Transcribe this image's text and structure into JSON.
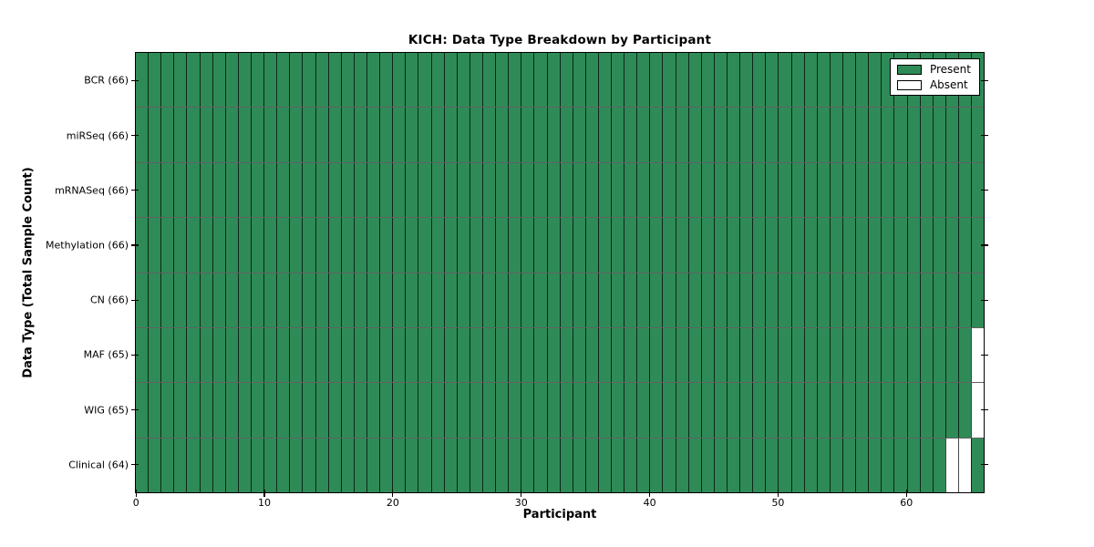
{
  "page": {
    "background": "#ffffff"
  },
  "chart_data": {
    "type": "heatmap",
    "title": "KICH: Data Type Breakdown by Participant",
    "xlabel": "Participant",
    "ylabel": "Data Type (Total Sample Count)",
    "n_participants": 66,
    "x_ticks": [
      0,
      10,
      20,
      30,
      40,
      50,
      60
    ],
    "rows": [
      {
        "label": "BCR (66)",
        "data_type": "BCR",
        "total": 66,
        "absent_participants": []
      },
      {
        "label": "miRSeq (66)",
        "data_type": "miRSeq",
        "total": 66,
        "absent_participants": []
      },
      {
        "label": "mRNASeq (66)",
        "data_type": "mRNASeq",
        "total": 66,
        "absent_participants": []
      },
      {
        "label": "Methylation (66)",
        "data_type": "Methylation",
        "total": 66,
        "absent_participants": []
      },
      {
        "label": "CN (66)",
        "data_type": "CN",
        "total": 66,
        "absent_participants": []
      },
      {
        "label": "MAF (65)",
        "data_type": "MAF",
        "total": 65,
        "absent_participants": [
          65
        ]
      },
      {
        "label": "WIG (65)",
        "data_type": "WIG",
        "total": 65,
        "absent_participants": [
          65
        ]
      },
      {
        "label": "Clinical (64)",
        "data_type": "Clinical",
        "total": 64,
        "absent_participants": [
          63,
          64
        ]
      }
    ],
    "legend": {
      "position": "upper right",
      "entries": [
        {
          "label": "Present",
          "color": "#2e8b57"
        },
        {
          "label": "Absent",
          "color": "#ffffff"
        }
      ]
    },
    "colors": {
      "present": "#2e8b57",
      "absent": "#ffffff",
      "grid": "#000000"
    },
    "xlim": [
      0,
      66
    ],
    "grid": true
  }
}
